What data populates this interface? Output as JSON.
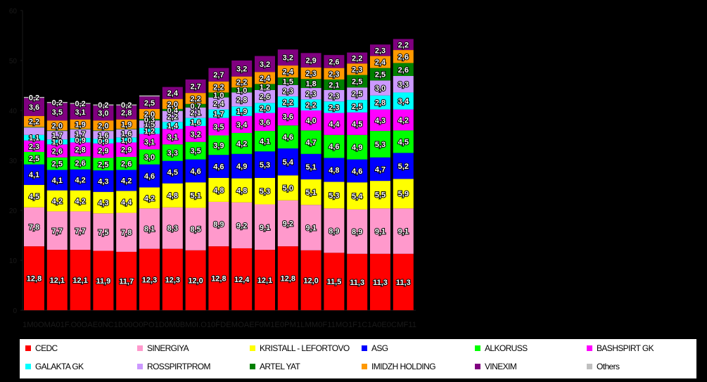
{
  "chart_data": {
    "type": "bar",
    "stacked": true,
    "title": "",
    "xlabel": "",
    "ylabel": "",
    "ylim": [
      0,
      60
    ],
    "yticks": [
      "0",
      "10",
      "20",
      "30",
      "40",
      "50",
      "60"
    ],
    "grid": false,
    "legend_position": "bottom",
    "categories": [
      "",
      "",
      "",
      "",
      "",
      "",
      "",
      "",
      "",
      "",
      "",
      "",
      "",
      "",
      "",
      "",
      ""
    ],
    "x_axis_text": "1M0OMA01F.O0OAE0NC1D00O0PO1D0M0BM0I.O10FDEMOAEF0M1E0PM1LMM0F11MO1F1C1A0E0CMF11",
    "series": [
      {
        "name": "CEDC",
        "color": "#ff0000",
        "values": [
          12.8,
          12.1,
          12.1,
          11.9,
          11.7,
          12.3,
          12.3,
          12.0,
          12.8,
          12.4,
          12.1,
          12.8,
          12.0,
          11.5,
          11.3,
          11.3,
          11.3
        ]
      },
      {
        "name": "SINERGIYA",
        "color": "#ff99cc",
        "values": [
          7.8,
          7.7,
          7.7,
          7.5,
          7.8,
          8.1,
          8.3,
          8.5,
          8.9,
          9.2,
          9.1,
          9.2,
          9.1,
          8.9,
          8.9,
          9.1,
          9.1
        ]
      },
      {
        "name": "KRISTALL - LEFORTOVO",
        "color": "#ffff00",
        "values": [
          4.5,
          4.2,
          4.2,
          4.3,
          4.4,
          4.2,
          4.8,
          5.1,
          4.8,
          4.8,
          5.3,
          5.0,
          5.1,
          5.3,
          5.4,
          5.5,
          5.9
        ]
      },
      {
        "name": "ASG",
        "color": "#0000ff",
        "values": [
          4.1,
          4.1,
          4.2,
          4.3,
          4.2,
          4.6,
          4.5,
          4.6,
          4.6,
          4.9,
          5.3,
          5.4,
          5.1,
          4.8,
          4.6,
          4.7,
          5.2
        ]
      },
      {
        "name": "ALKORUSS",
        "color": "#00ff00",
        "values": [
          2.5,
          2.5,
          2.6,
          2.5,
          2.6,
          3.0,
          3.3,
          3.5,
          3.9,
          4.2,
          4.1,
          4.6,
          4.7,
          4.6,
          4.9,
          5.3,
          4.5
        ]
      },
      {
        "name": "BASHSPIRT GK",
        "color": "#ff00ff",
        "values": [
          2.3,
          2.6,
          2.8,
          2.9,
          2.9,
          3.1,
          3.1,
          3.2,
          3.5,
          3.4,
          3.6,
          3.6,
          4.0,
          4.4,
          4.5,
          4.3,
          4.2
        ]
      },
      {
        "name": "GALAKTA GK",
        "color": "#00ffff",
        "values": [
          1.1,
          1.0,
          0.9,
          0.9,
          1.0,
          1.2,
          1.4,
          1.6,
          1.7,
          1.9,
          2.0,
          2.2,
          2.2,
          2.3,
          2.5,
          2.8,
          3.4
        ]
      },
      {
        "name": "ROSSPIRTPROM",
        "color": "#cc99ff",
        "values": [
          1.5,
          1.7,
          1.7,
          1.6,
          1.6,
          1.5,
          2.2,
          2.1,
          2.4,
          2.8,
          2.6,
          2.3,
          2.3,
          2.3,
          2.5,
          3.0,
          3.3
        ]
      },
      {
        "name": "ARTEL YAT",
        "color": "#008000",
        "values": [
          0.1,
          0.1,
          0.1,
          0.1,
          0.1,
          0.3,
          0.4,
          0.7,
          1.0,
          1.0,
          1.2,
          1.5,
          1.8,
          2.1,
          2.5,
          2.5,
          2.6
        ]
      },
      {
        "name": "IMIDZH HOLDING",
        "color": "#ff9900",
        "values": [
          2.2,
          2.0,
          1.9,
          2.0,
          1.9,
          2.0,
          2.0,
          2.2,
          2.2,
          2.2,
          2.4,
          2.4,
          2.3,
          2.3,
          2.3,
          2.4,
          2.6
        ]
      },
      {
        "name": "VINEXIM",
        "color": "#800080",
        "values": [
          3.6,
          3.5,
          3.1,
          3.0,
          2.8,
          2.5,
          2.4,
          2.7,
          2.7,
          3.2,
          3.2,
          3.2,
          2.9,
          2.6,
          2.2,
          2.3,
          2.2
        ]
      },
      {
        "name": "Others",
        "color": "#c0c0c0",
        "values": [
          0.2,
          0.2,
          0.2,
          0.2,
          0.2,
          0.2,
          0.0,
          0.0,
          0.0,
          0.0,
          0.0,
          0.0,
          0.0,
          0.0,
          0.0,
          0.0,
          0.0
        ]
      }
    ],
    "labels": [
      [
        "12,8",
        "12,1",
        "12,1",
        "11,9",
        "11,7",
        "12,3",
        "12,3",
        "12,0",
        "12,8",
        "12,4",
        "12,1",
        "12,8",
        "12,0",
        "11,5",
        "11,3",
        "11,3",
        "11,3"
      ],
      [
        "7,8",
        "7,7",
        "7,7",
        "7,5",
        "7,8",
        "8,1",
        "8,3",
        "8,5",
        "8,9",
        "9,2",
        "9,1",
        "9,2",
        "9,1",
        "8,9",
        "8,9",
        "9,1",
        "9,1"
      ],
      [
        "4,5",
        "4,2",
        "4,2",
        "4,3",
        "4,4",
        "4,2",
        "4,8",
        "5,1",
        "4,8",
        "4,8",
        "5,3",
        "5,0",
        "5,1",
        "5,3",
        "5,4",
        "5,5",
        "5,9"
      ],
      [
        "4,1",
        "4,1",
        "4,2",
        "4,3",
        "4,2",
        "4,6",
        "4,5",
        "4,6",
        "4,6",
        "4,9",
        "5,3",
        "5,4",
        "5,1",
        "4,8",
        "4,6",
        "4,7",
        "5,2"
      ],
      [
        "2,5",
        "2,5",
        "2,6",
        "2,5",
        "2,6",
        "3,0",
        "3,3",
        "3,5",
        "3,9",
        "4,2",
        "4,1",
        "4,6",
        "4,7",
        "4,6",
        "4,9",
        "5,3",
        "4,5"
      ],
      [
        "2,3",
        "2,6",
        "2,8",
        "2,9",
        "2,9",
        "3,1",
        "3,1",
        "3,2",
        "3,5",
        "3,4",
        "3,6",
        "3,6",
        "4,0",
        "4,4",
        "4,5",
        "4,3",
        "4,2"
      ],
      [
        "1,1",
        "1,0",
        "0,9",
        "0,9",
        "1,0",
        "1,2",
        "1,4",
        "1,6",
        "1,7",
        "1,9",
        "2,0",
        "2,2",
        "2,2",
        "2,3",
        "2,5",
        "2,8",
        "3,4"
      ],
      [
        "",
        "1,7",
        "1,7",
        "1,6",
        "1,6",
        "1,5",
        "2,2",
        "2,1",
        "2,4",
        "2,8",
        "2,6",
        "2,3",
        "2,3",
        "2,3",
        "2,5",
        "3,0",
        "3,3"
      ],
      [
        "",
        "",
        "",
        "",
        "",
        "0,3",
        "0,4",
        "0,7",
        "1,0",
        "1,0",
        "1,2",
        "1,5",
        "1,8",
        "2,1",
        "2,5",
        "2,5",
        "2,6"
      ],
      [
        "2,2",
        "2,0",
        "1,9",
        "2,0",
        "1,9",
        "2,0",
        "2,0",
        "2,2",
        "2,2",
        "2,2",
        "2,4",
        "2,4",
        "2,3",
        "2,3",
        "2,3",
        "2,4",
        "2,6"
      ],
      [
        "3,6",
        "3,5",
        "3,1",
        "3,0",
        "2,8",
        "2,5",
        "2,4",
        "2,7",
        "2,7",
        "3,2",
        "3,2",
        "3,2",
        "2,9",
        "2,6",
        "2,2",
        "2,3",
        "2,2"
      ],
      [
        "0,2",
        "0,2",
        "0,2",
        "0,2",
        "0,2",
        "",
        "",
        "",
        "",
        "",
        "",
        "",
        "",
        "",
        "",
        "",
        ""
      ]
    ]
  }
}
